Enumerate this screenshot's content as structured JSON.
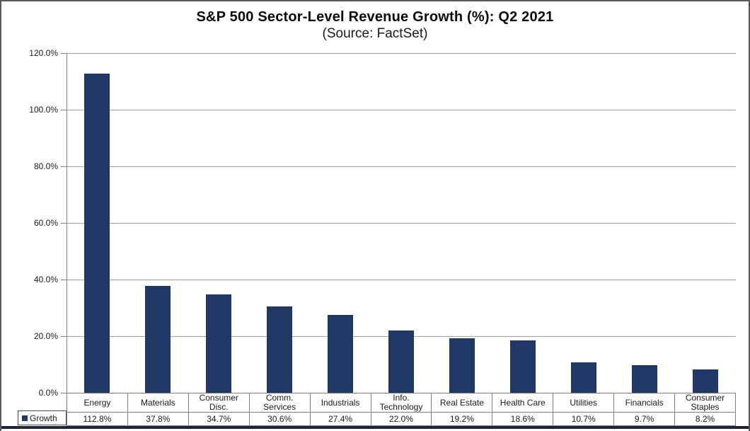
{
  "chart": {
    "title": "S&P 500 Sector-Level Revenue Growth (%): Q2 2021",
    "subtitle": "(Source: FactSet)",
    "legend_label": "Growth"
  },
  "chart_data": {
    "type": "bar",
    "title": "S&P 500 Sector-Level Revenue Growth (%): Q2 2021",
    "subtitle": "(Source: FactSet)",
    "categories": [
      "Energy",
      "Materials",
      "Consumer Disc.",
      "Comm. Services",
      "Industrials",
      "Info. Technology",
      "Real Estate",
      "Health Care",
      "Utilities",
      "Financials",
      "Consumer Staples"
    ],
    "category_label_lines": [
      [
        "Energy"
      ],
      [
        "Materials"
      ],
      [
        "Consumer",
        "Disc."
      ],
      [
        "Comm.",
        "Services"
      ],
      [
        "Industrials"
      ],
      [
        "Info.",
        "Technology"
      ],
      [
        "Real Estate"
      ],
      [
        "Health Care"
      ],
      [
        "Utilities"
      ],
      [
        "Financials"
      ],
      [
        "Consumer",
        "Staples"
      ]
    ],
    "series": [
      {
        "name": "Growth",
        "values": [
          112.8,
          37.8,
          34.7,
          30.6,
          27.4,
          22.0,
          19.2,
          18.6,
          10.7,
          9.7,
          8.2
        ]
      }
    ],
    "value_labels": [
      "112.8%",
      "37.8%",
      "34.7%",
      "30.6%",
      "27.4%",
      "22.0%",
      "19.2%",
      "18.6%",
      "10.7%",
      "9.7%",
      "8.2%"
    ],
    "ytick_labels": [
      "120.0%",
      "100.0%",
      "80.0%",
      "60.0%",
      "40.0%",
      "20.0%",
      "0.0%"
    ],
    "xlabel": "",
    "ylabel": "",
    "ylim": [
      0,
      120
    ],
    "grid": true,
    "legend_position": "bottom-left",
    "bar_color": "#1f3864"
  }
}
